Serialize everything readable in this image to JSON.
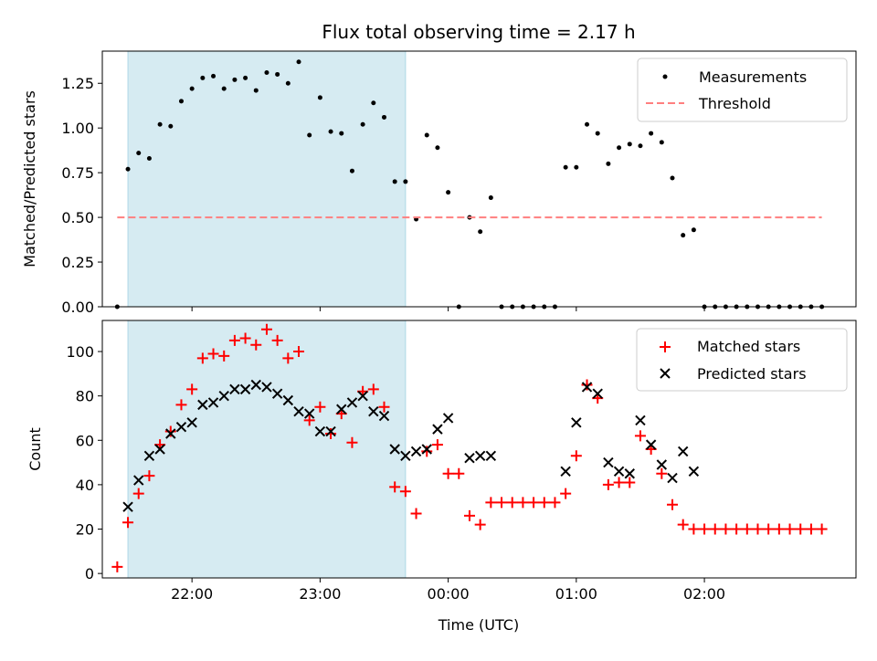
{
  "chart_data": [
    {
      "type": "scatter",
      "title": "Flux total observing time = 2.17 h",
      "xlabel": "",
      "ylabel": "Matched/Predicted stars",
      "xlim": [
        "21:18",
        "03:11"
      ],
      "ylim": [
        0,
        1.43
      ],
      "xticks": [
        "22:00",
        "23:00",
        "00:00",
        "01:00",
        "02:00"
      ],
      "show_xticklabels": false,
      "yticks": [
        "0.00",
        "0.25",
        "0.50",
        "0.75",
        "1.00",
        "1.25"
      ],
      "highlight_span": [
        "21:30",
        "23:40"
      ],
      "highlight_color": "#add8e6",
      "grid": false,
      "legend_position": "upper right",
      "series": [
        {
          "name": "Measurements",
          "marker": "dot",
          "color": "#000000",
          "points": [
            [
              "21:25",
              0.0
            ],
            [
              "21:30",
              0.77
            ],
            [
              "21:35",
              0.86
            ],
            [
              "21:40",
              0.83
            ],
            [
              "21:45",
              1.02
            ],
            [
              "21:50",
              1.01
            ],
            [
              "21:55",
              1.15
            ],
            [
              "22:00",
              1.22
            ],
            [
              "22:05",
              1.28
            ],
            [
              "22:10",
              1.29
            ],
            [
              "22:15",
              1.22
            ],
            [
              "22:20",
              1.27
            ],
            [
              "22:25",
              1.28
            ],
            [
              "22:30",
              1.21
            ],
            [
              "22:35",
              1.31
            ],
            [
              "22:40",
              1.3
            ],
            [
              "22:45",
              1.25
            ],
            [
              "22:50",
              1.37
            ],
            [
              "22:55",
              0.96
            ],
            [
              "23:00",
              1.17
            ],
            [
              "23:05",
              0.98
            ],
            [
              "23:10",
              0.97
            ],
            [
              "23:15",
              0.76
            ],
            [
              "23:20",
              1.02
            ],
            [
              "23:25",
              1.14
            ],
            [
              "23:30",
              1.06
            ],
            [
              "23:35",
              0.7
            ],
            [
              "23:40",
              0.7
            ],
            [
              "23:45",
              0.49
            ],
            [
              "23:50",
              0.96
            ],
            [
              "23:55",
              0.89
            ],
            [
              "00:00",
              0.64
            ],
            [
              "00:05",
              0.0
            ],
            [
              "00:10",
              0.5
            ],
            [
              "00:15",
              0.42
            ],
            [
              "00:20",
              0.61
            ],
            [
              "00:25",
              0.0
            ],
            [
              "00:30",
              0.0
            ],
            [
              "00:35",
              0.0
            ],
            [
              "00:40",
              0.0
            ],
            [
              "00:45",
              0.0
            ],
            [
              "00:50",
              0.0
            ],
            [
              "00:55",
              0.78
            ],
            [
              "01:00",
              0.78
            ],
            [
              "01:05",
              1.02
            ],
            [
              "01:10",
              0.97
            ],
            [
              "01:15",
              0.8
            ],
            [
              "01:20",
              0.89
            ],
            [
              "01:25",
              0.91
            ],
            [
              "01:30",
              0.9
            ],
            [
              "01:35",
              0.97
            ],
            [
              "01:40",
              0.92
            ],
            [
              "01:45",
              0.72
            ],
            [
              "01:50",
              0.4
            ],
            [
              "01:55",
              0.43
            ],
            [
              "02:00",
              0.0
            ],
            [
              "02:05",
              0.0
            ],
            [
              "02:10",
              0.0
            ],
            [
              "02:15",
              0.0
            ],
            [
              "02:20",
              0.0
            ],
            [
              "02:25",
              0.0
            ],
            [
              "02:30",
              0.0
            ],
            [
              "02:35",
              0.0
            ],
            [
              "02:40",
              0.0
            ],
            [
              "02:45",
              0.0
            ],
            [
              "02:50",
              0.0
            ],
            [
              "02:55",
              0.0
            ]
          ]
        },
        {
          "name": "Threshold",
          "marker": "dashed-line",
          "color": "#ff7f7f",
          "points": [
            [
              "21:25",
              0.5
            ],
            [
              "02:55",
              0.5
            ]
          ]
        }
      ]
    },
    {
      "type": "scatter",
      "title": "",
      "xlabel": "Time (UTC)",
      "ylabel": "Count",
      "xlim": [
        "21:18",
        "03:11"
      ],
      "ylim": [
        -2,
        114
      ],
      "xticks": [
        "22:00",
        "23:00",
        "00:00",
        "01:00",
        "02:00"
      ],
      "yticks": [
        "0",
        "20",
        "40",
        "60",
        "80",
        "100"
      ],
      "highlight_span": [
        "21:30",
        "23:40"
      ],
      "highlight_color": "#add8e6",
      "grid": false,
      "legend_position": "upper right",
      "series": [
        {
          "name": "Matched stars",
          "marker": "plus",
          "color": "#ff0000",
          "points": [
            [
              "21:25",
              3
            ],
            [
              "21:30",
              23
            ],
            [
              "21:35",
              36
            ],
            [
              "21:40",
              44
            ],
            [
              "21:45",
              58
            ],
            [
              "21:50",
              64
            ],
            [
              "21:55",
              76
            ],
            [
              "22:00",
              83
            ],
            [
              "22:05",
              97
            ],
            [
              "22:10",
              99
            ],
            [
              "22:15",
              98
            ],
            [
              "22:20",
              105
            ],
            [
              "22:25",
              106
            ],
            [
              "22:30",
              103
            ],
            [
              "22:35",
              110
            ],
            [
              "22:40",
              105
            ],
            [
              "22:45",
              97
            ],
            [
              "22:50",
              100
            ],
            [
              "22:55",
              69
            ],
            [
              "23:00",
              75
            ],
            [
              "23:05",
              63
            ],
            [
              "23:10",
              72
            ],
            [
              "23:15",
              59
            ],
            [
              "23:20",
              82
            ],
            [
              "23:25",
              83
            ],
            [
              "23:30",
              75
            ],
            [
              "23:35",
              39
            ],
            [
              "23:40",
              37
            ],
            [
              "23:45",
              27
            ],
            [
              "23:50",
              55
            ],
            [
              "23:55",
              58
            ],
            [
              "00:00",
              45
            ],
            [
              "00:05",
              45
            ],
            [
              "00:10",
              26
            ],
            [
              "00:15",
              22
            ],
            [
              "00:20",
              32
            ],
            [
              "00:25",
              32
            ],
            [
              "00:30",
              32
            ],
            [
              "00:35",
              32
            ],
            [
              "00:40",
              32
            ],
            [
              "00:45",
              32
            ],
            [
              "00:50",
              32
            ],
            [
              "00:55",
              36
            ],
            [
              "01:00",
              53
            ],
            [
              "01:05",
              85
            ],
            [
              "01:10",
              79
            ],
            [
              "01:15",
              40
            ],
            [
              "01:20",
              41
            ],
            [
              "01:25",
              41
            ],
            [
              "01:30",
              62
            ],
            [
              "01:35",
              56
            ],
            [
              "01:40",
              45
            ],
            [
              "01:45",
              31
            ],
            [
              "01:50",
              22
            ],
            [
              "01:55",
              20
            ],
            [
              "02:00",
              20
            ],
            [
              "02:05",
              20
            ],
            [
              "02:10",
              20
            ],
            [
              "02:15",
              20
            ],
            [
              "02:20",
              20
            ],
            [
              "02:25",
              20
            ],
            [
              "02:30",
              20
            ],
            [
              "02:35",
              20
            ],
            [
              "02:40",
              20
            ],
            [
              "02:45",
              20
            ],
            [
              "02:50",
              20
            ],
            [
              "02:55",
              20
            ]
          ]
        },
        {
          "name": "Predicted stars",
          "marker": "x",
          "color": "#000000",
          "points": [
            [
              "21:30",
              30
            ],
            [
              "21:35",
              42
            ],
            [
              "21:40",
              53
            ],
            [
              "21:45",
              56
            ],
            [
              "21:50",
              63
            ],
            [
              "21:55",
              66
            ],
            [
              "22:00",
              68
            ],
            [
              "22:05",
              76
            ],
            [
              "22:10",
              77
            ],
            [
              "22:15",
              80
            ],
            [
              "22:20",
              83
            ],
            [
              "22:25",
              83
            ],
            [
              "22:30",
              85
            ],
            [
              "22:35",
              84
            ],
            [
              "22:40",
              81
            ],
            [
              "22:45",
              78
            ],
            [
              "22:50",
              73
            ],
            [
              "22:55",
              72
            ],
            [
              "23:00",
              64
            ],
            [
              "23:05",
              64
            ],
            [
              "23:10",
              74
            ],
            [
              "23:15",
              77
            ],
            [
              "23:20",
              80
            ],
            [
              "23:25",
              73
            ],
            [
              "23:30",
              71
            ],
            [
              "23:35",
              56
            ],
            [
              "23:40",
              53
            ],
            [
              "23:45",
              55
            ],
            [
              "23:50",
              56
            ],
            [
              "23:55",
              65
            ],
            [
              "00:00",
              70
            ],
            [
              "00:10",
              52
            ],
            [
              "00:15",
              53
            ],
            [
              "00:20",
              53
            ],
            [
              "00:55",
              46
            ],
            [
              "01:00",
              68
            ],
            [
              "01:05",
              84
            ],
            [
              "01:10",
              81
            ],
            [
              "01:15",
              50
            ],
            [
              "01:20",
              46
            ],
            [
              "01:25",
              45
            ],
            [
              "01:30",
              69
            ],
            [
              "01:35",
              58
            ],
            [
              "01:40",
              49
            ],
            [
              "01:45",
              43
            ],
            [
              "01:50",
              55
            ],
            [
              "01:55",
              46
            ]
          ]
        }
      ]
    }
  ]
}
